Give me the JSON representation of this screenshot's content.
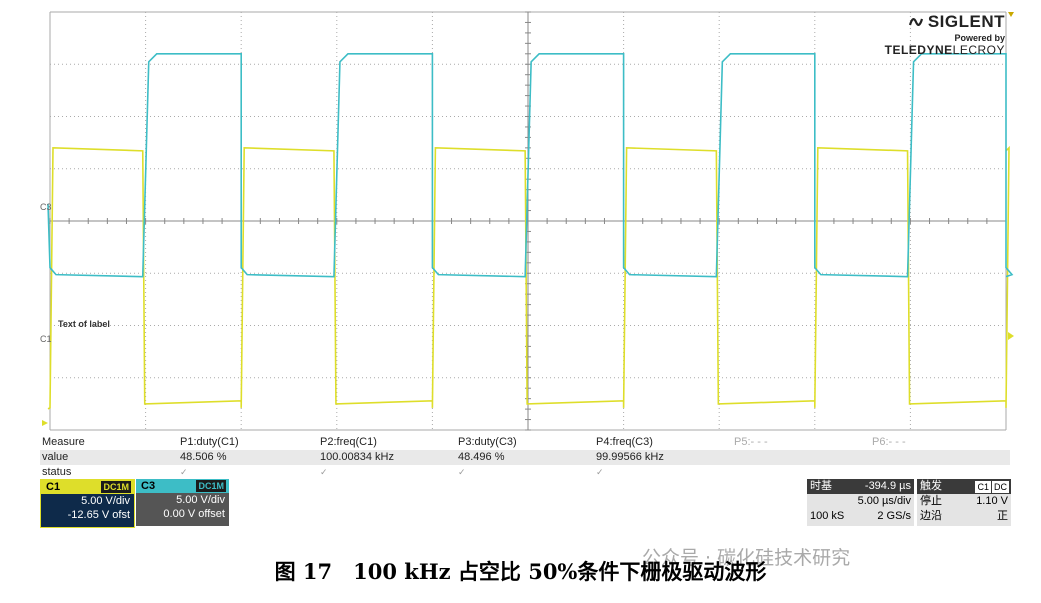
{
  "brand": {
    "name": "SIGLENT",
    "powered_by": "Powered by",
    "partner_bold": "TELEDYNE",
    "partner_light": "LECROY"
  },
  "channel_markers": {
    "c3": "C3",
    "c1": "C1"
  },
  "trace_label": "Text of label",
  "measure": {
    "header": "Measure",
    "rows": {
      "value": "value",
      "status": "status"
    },
    "params": [
      {
        "name": "P1:duty(C1)",
        "value": "48.506 %",
        "status": "✓"
      },
      {
        "name": "P2:freq(C1)",
        "value": "100.00834 kHz",
        "status": "✓"
      },
      {
        "name": "P3:duty(C3)",
        "value": "48.496 %",
        "status": "✓"
      },
      {
        "name": "P4:freq(C3)",
        "value": "99.99566 kHz",
        "status": "✓"
      },
      {
        "name": "P5:- - -",
        "value": "",
        "status": ""
      },
      {
        "name": "P6:- - -",
        "value": "",
        "status": ""
      }
    ]
  },
  "channels": {
    "c1": {
      "name": "C1",
      "coupling": "DC1M",
      "scale": "5.00 V/div",
      "offset": "-12.65 V ofst"
    },
    "c3": {
      "name": "C3",
      "coupling": "DC1M",
      "scale": "5.00 V/div",
      "offset": "0.00 V offset"
    }
  },
  "timebase": {
    "label": "时基",
    "delay": "-394.9 µs",
    "scale": "5.00 µs/div",
    "memory": "100 kS",
    "sample_rate": "2 GS/s"
  },
  "trigger": {
    "label": "触发",
    "source": "C1",
    "coupling": "DC",
    "mode": "停止",
    "level": "1.10 V",
    "edge_label": "边沿",
    "edge": "正"
  },
  "caption": "图 17　100 kHz 占空比 50%条件下栅极驱动波形",
  "watermark": "公众号 · 碳化硅技术研究",
  "colors": {
    "c1": "#dede2a",
    "c3": "#3dbdc6",
    "grid": "#aaaaaa"
  },
  "chart_data": {
    "type": "line",
    "series": [
      {
        "name": "C1",
        "duty": 48.506,
        "frequency_khz": 100.00834
      },
      {
        "name": "C3",
        "duty": 48.496,
        "frequency_khz": 99.99566
      }
    ]
  }
}
